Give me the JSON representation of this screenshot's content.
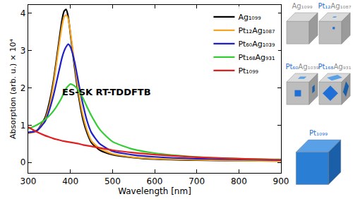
{
  "chart_data": {
    "type": "line",
    "xlabel": "Wavelength [nm]",
    "ylabel": "Absorption (arb. u.) × 10⁴",
    "annotation": "ES-SK RT-TDDFTB",
    "x": [
      300,
      320,
      340,
      350,
      360,
      370,
      380,
      385,
      390,
      395,
      400,
      410,
      420,
      430,
      440,
      450,
      470,
      500,
      550,
      600,
      700,
      800,
      900
    ],
    "series": [
      {
        "name": "Ag₁₀₉₉",
        "color": "#000000",
        "values": [
          0.8,
          0.85,
          1.2,
          1.6,
          2.2,
          3.0,
          3.8,
          4.05,
          4.1,
          3.9,
          3.45,
          2.55,
          1.75,
          1.15,
          0.78,
          0.53,
          0.33,
          0.21,
          0.13,
          0.09,
          0.06,
          0.05,
          0.04
        ]
      },
      {
        "name": "Pt₁₂Ag₁₀₈₇",
        "color": "#f5a623",
        "values": [
          0.78,
          0.84,
          1.15,
          1.5,
          2.1,
          2.9,
          3.65,
          3.9,
          3.95,
          3.85,
          3.5,
          2.65,
          1.85,
          1.25,
          0.85,
          0.58,
          0.37,
          0.23,
          0.14,
          0.1,
          0.07,
          0.05,
          0.04
        ]
      },
      {
        "name": "Pt₆₀Ag₁₀₃₉",
        "color": "#1f1fc8",
        "values": [
          0.8,
          0.85,
          1.1,
          1.4,
          1.8,
          2.3,
          2.8,
          2.98,
          3.1,
          3.17,
          3.1,
          2.7,
          2.1,
          1.55,
          1.1,
          0.8,
          0.5,
          0.3,
          0.2,
          0.15,
          0.1,
          0.08,
          0.06
        ]
      },
      {
        "name": "Pt₁₆₈Ag₉₃₁",
        "color": "#33cc33",
        "values": [
          0.9,
          1.0,
          1.15,
          1.25,
          1.38,
          1.55,
          1.75,
          1.88,
          1.98,
          2.05,
          2.1,
          2.05,
          1.92,
          1.72,
          1.48,
          1.25,
          0.88,
          0.56,
          0.35,
          0.25,
          0.15,
          0.1,
          0.08
        ]
      },
      {
        "name": "Pt₁₀₉₉",
        "color": "#e02020",
        "values": [
          0.95,
          0.82,
          0.72,
          0.68,
          0.64,
          0.61,
          0.58,
          0.57,
          0.56,
          0.55,
          0.54,
          0.52,
          0.5,
          0.47,
          0.45,
          0.43,
          0.39,
          0.33,
          0.26,
          0.21,
          0.14,
          0.1,
          0.07
        ]
      }
    ],
    "xlim": [
      300,
      900
    ],
    "xticks": [
      300,
      400,
      500,
      600,
      700,
      800,
      900
    ],
    "ylim": [
      -0.28,
      4.22
    ],
    "yticks": [
      0,
      1,
      2,
      3,
      4
    ],
    "grid": false,
    "legend": "upper right"
  },
  "structures": [
    "Ag₁₀₉₉",
    "Pt₁₂Ag₁₀₈₇",
    "Pt₆₀Ag₁₀₃₉",
    "Pt₁₆₈Ag₉₃₁",
    "Pt₁₀₉₉"
  ]
}
